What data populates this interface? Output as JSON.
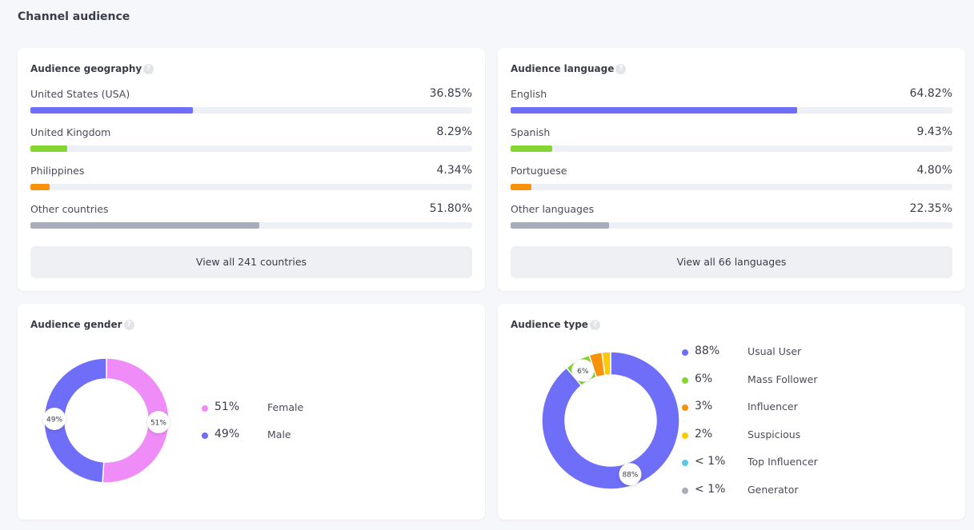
{
  "page_title": "Channel audience",
  "geography": {
    "title": "Audience geography",
    "button": "View all 241 countries",
    "items": [
      {
        "label": "United States (USA)",
        "value": "36.85%",
        "percent": 36.85,
        "color": "#6e6ef8"
      },
      {
        "label": "United Kingdom",
        "value": "8.29%",
        "percent": 8.29,
        "color": "#86d631"
      },
      {
        "label": "Philippines",
        "value": "4.34%",
        "percent": 4.34,
        "color": "#f7920a"
      },
      {
        "label": "Other countries",
        "value": "51.80%",
        "percent": 51.8,
        "color": "#a8adb9"
      }
    ]
  },
  "language": {
    "title": "Audience language",
    "button": "View all 66 languages",
    "items": [
      {
        "label": "English",
        "value": "64.82%",
        "percent": 64.82,
        "color": "#6e6ef8"
      },
      {
        "label": "Spanish",
        "value": "9.43%",
        "percent": 9.43,
        "color": "#86d631"
      },
      {
        "label": "Portuguese",
        "value": "4.80%",
        "percent": 4.8,
        "color": "#f7920a"
      },
      {
        "label": "Other languages",
        "value": "22.35%",
        "percent": 22.35,
        "color": "#a8adb9"
      }
    ]
  },
  "gender": {
    "title": "Audience gender",
    "items": [
      {
        "label": "Female",
        "value": "51%",
        "percent": 51,
        "color": "#f08cf7"
      },
      {
        "label": "Male",
        "value": "49%",
        "percent": 49,
        "color": "#6e6ef8"
      }
    ]
  },
  "type": {
    "title": "Audience type",
    "items": [
      {
        "label": "Usual User",
        "value": "88%",
        "percent": 88,
        "color": "#6e6ef8"
      },
      {
        "label": "Mass Follower",
        "value": "6%",
        "percent": 6,
        "color": "#86d631"
      },
      {
        "label": "Influencer",
        "value": "3%",
        "percent": 3,
        "color": "#f7920a"
      },
      {
        "label": "Suspicious",
        "value": "2%",
        "percent": 2,
        "color": "#fcc80a"
      },
      {
        "label": "Top Influencer",
        "value": "< 1%",
        "percent": 0,
        "color": "#5cc8e8"
      },
      {
        "label": "Generator",
        "value": "< 1%",
        "percent": 0,
        "color": "#a8adb9"
      }
    ]
  }
}
